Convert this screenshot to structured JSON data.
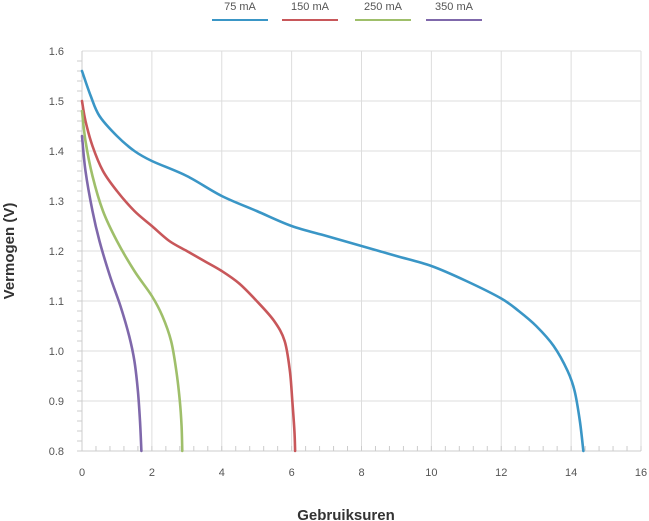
{
  "chart_data": {
    "type": "line",
    "xlabel": "Gebruiksuren",
    "ylabel": "Vermogen (V)",
    "xlim": [
      0,
      16
    ],
    "ylim": [
      0.8,
      1.6
    ],
    "xticks": [
      "0",
      "2",
      "4",
      "6",
      "8",
      "10",
      "12",
      "14",
      "16"
    ],
    "yticks": [
      "0.8",
      "0.9",
      "1.0",
      "1.1",
      "1.2",
      "1.3",
      "1.4",
      "1.5",
      "1.6"
    ],
    "grid": true,
    "legend_position": "top",
    "series": [
      {
        "name": "75 mA",
        "color": "#3a96c6",
        "points": [
          [
            0.0,
            1.56
          ],
          [
            0.25,
            1.51
          ],
          [
            0.5,
            1.47
          ],
          [
            1.0,
            1.43
          ],
          [
            1.5,
            1.4
          ],
          [
            2.0,
            1.38
          ],
          [
            3.0,
            1.35
          ],
          [
            4.0,
            1.31
          ],
          [
            5.0,
            1.28
          ],
          [
            6.0,
            1.25
          ],
          [
            7.0,
            1.23
          ],
          [
            8.0,
            1.21
          ],
          [
            9.0,
            1.19
          ],
          [
            10.0,
            1.17
          ],
          [
            11.0,
            1.14
          ],
          [
            12.0,
            1.105
          ],
          [
            12.5,
            1.08
          ],
          [
            13.0,
            1.05
          ],
          [
            13.5,
            1.01
          ],
          [
            13.9,
            0.96
          ],
          [
            14.1,
            0.92
          ],
          [
            14.25,
            0.86
          ],
          [
            14.35,
            0.8
          ]
        ]
      },
      {
        "name": "150 mA",
        "color": "#c8575a",
        "points": [
          [
            0.0,
            1.5
          ],
          [
            0.1,
            1.46
          ],
          [
            0.3,
            1.41
          ],
          [
            0.6,
            1.36
          ],
          [
            1.0,
            1.32
          ],
          [
            1.5,
            1.28
          ],
          [
            2.0,
            1.25
          ],
          [
            2.5,
            1.22
          ],
          [
            3.0,
            1.2
          ],
          [
            3.5,
            1.18
          ],
          [
            4.0,
            1.16
          ],
          [
            4.5,
            1.135
          ],
          [
            5.0,
            1.1
          ],
          [
            5.5,
            1.06
          ],
          [
            5.8,
            1.02
          ],
          [
            5.95,
            0.96
          ],
          [
            6.02,
            0.9
          ],
          [
            6.08,
            0.84
          ],
          [
            6.1,
            0.8
          ]
        ]
      },
      {
        "name": "250 mA",
        "color": "#9fbf6a",
        "points": [
          [
            0.0,
            1.48
          ],
          [
            0.1,
            1.42
          ],
          [
            0.3,
            1.35
          ],
          [
            0.6,
            1.28
          ],
          [
            1.0,
            1.22
          ],
          [
            1.5,
            1.16
          ],
          [
            2.0,
            1.11
          ],
          [
            2.3,
            1.07
          ],
          [
            2.55,
            1.02
          ],
          [
            2.7,
            0.96
          ],
          [
            2.8,
            0.9
          ],
          [
            2.85,
            0.85
          ],
          [
            2.87,
            0.8
          ]
        ]
      },
      {
        "name": "350 mA",
        "color": "#7f68ab",
        "points": [
          [
            0.0,
            1.43
          ],
          [
            0.1,
            1.36
          ],
          [
            0.3,
            1.28
          ],
          [
            0.5,
            1.22
          ],
          [
            0.8,
            1.15
          ],
          [
            1.1,
            1.09
          ],
          [
            1.35,
            1.03
          ],
          [
            1.5,
            0.98
          ],
          [
            1.6,
            0.92
          ],
          [
            1.66,
            0.86
          ],
          [
            1.7,
            0.8
          ]
        ]
      }
    ]
  }
}
